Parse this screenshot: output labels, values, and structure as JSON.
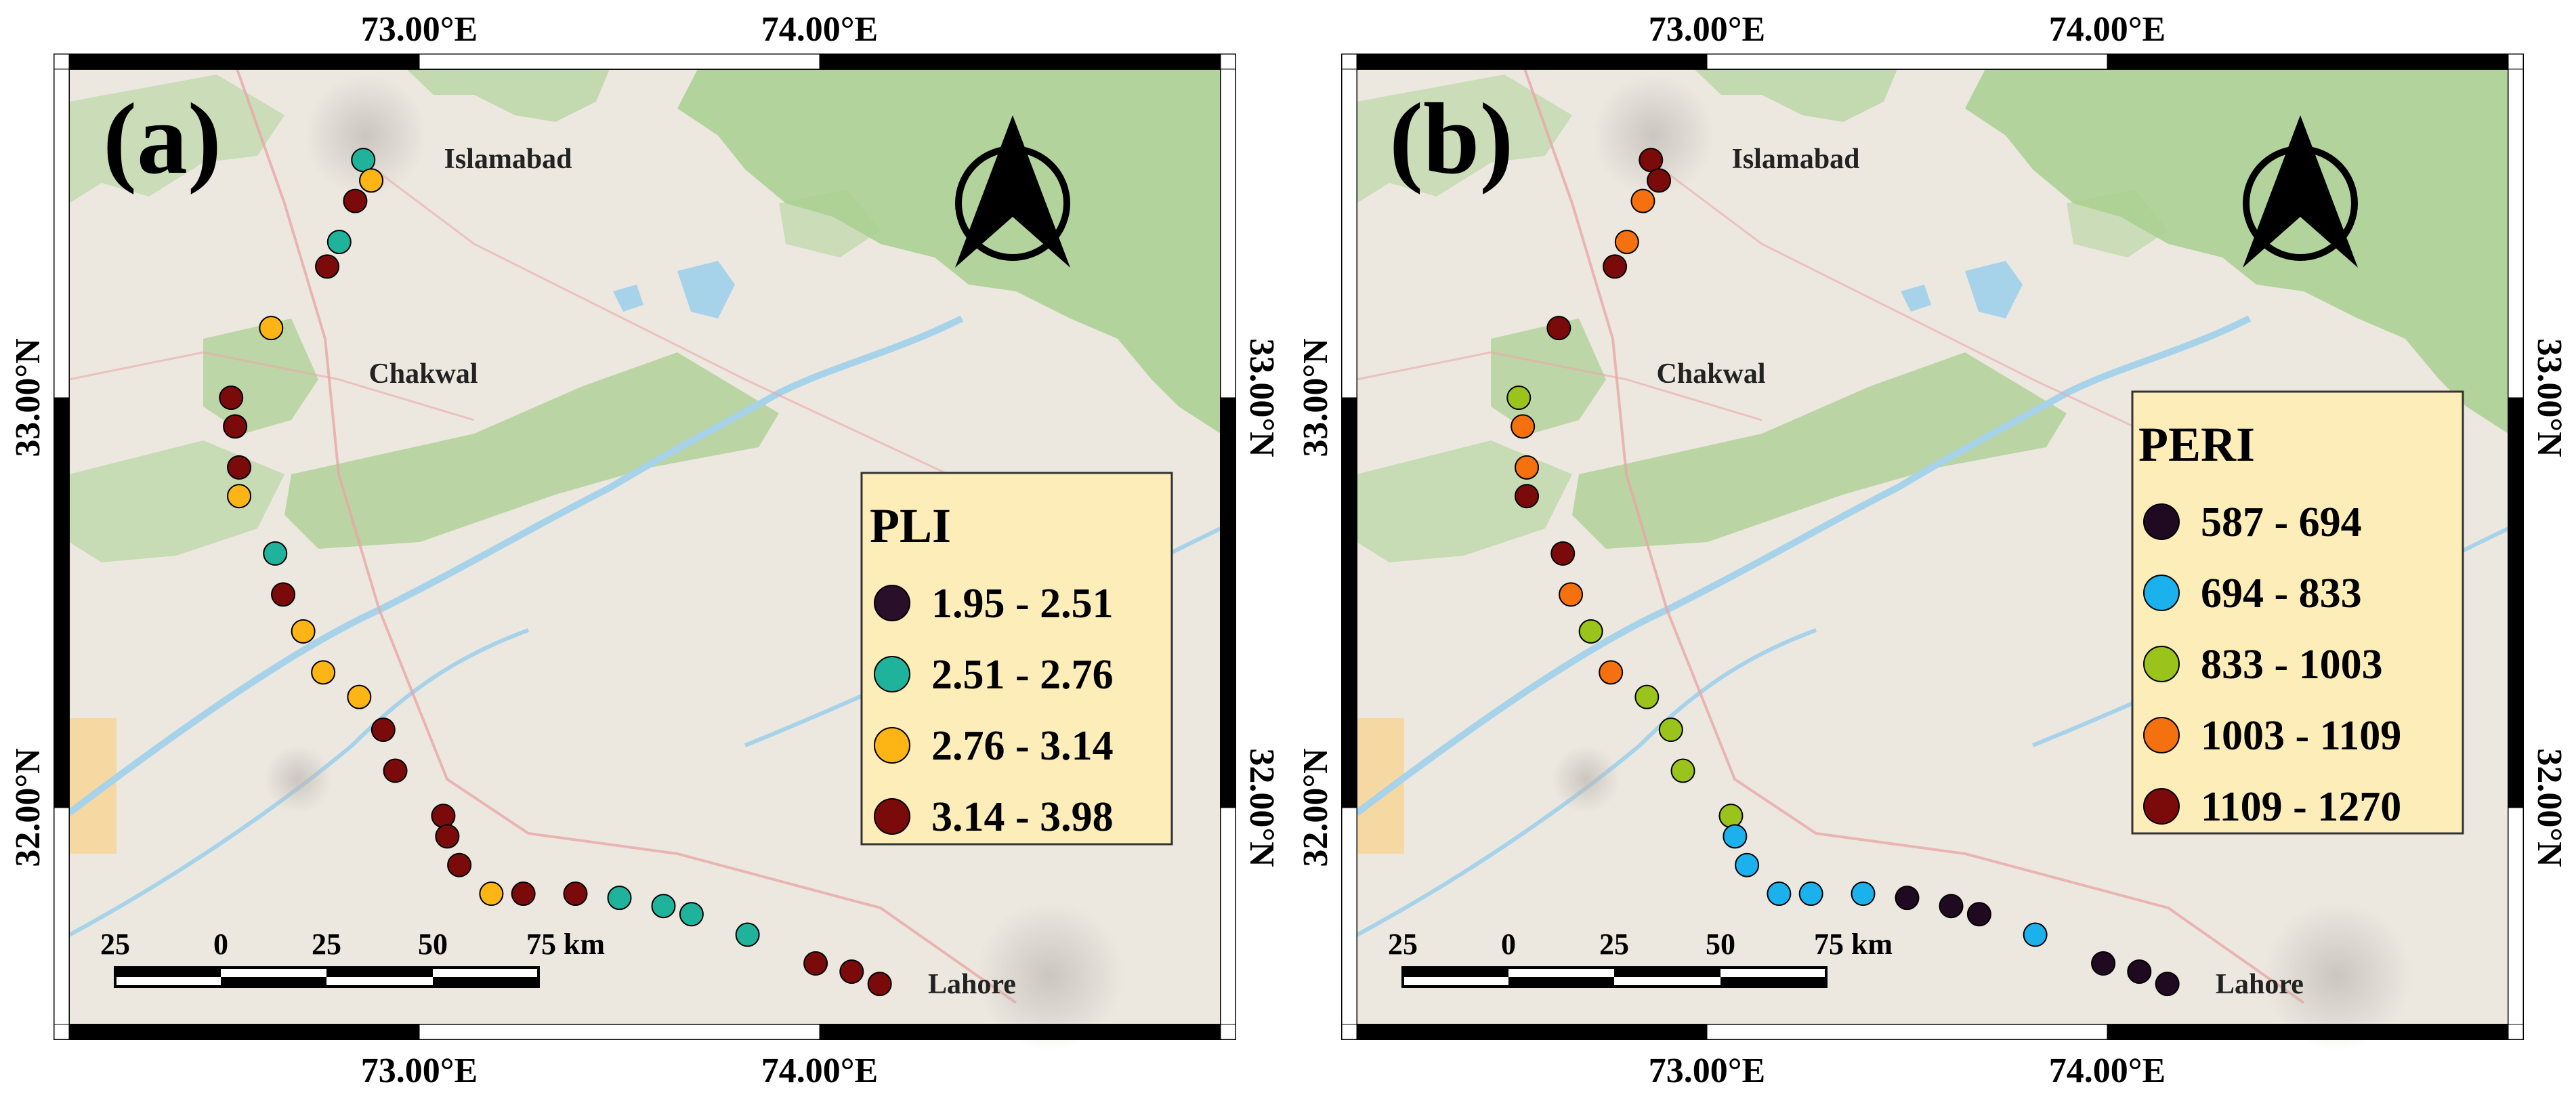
{
  "axes": {
    "top_lon": [
      "73.00°E",
      "74.00°E"
    ],
    "bottom_lon": [
      "73.00°E",
      "74.00°E"
    ],
    "left_lat": [
      "33.00°N",
      "32.00°N"
    ],
    "right_lat": [
      "33.00°N",
      "32.00°N"
    ]
  },
  "places": {
    "islamabad": "Islamabad",
    "chakwal": "Chakwal",
    "lahore": "Lahore"
  },
  "scale_bar": {
    "labels": [
      "25",
      "0",
      "25",
      "50",
      "75 km"
    ]
  },
  "colors": {
    "water": "#a6d2ea",
    "vegetation": "#a9cf8f",
    "land": "#ece8e0",
    "legend_bg": "#fdedb9",
    "frame": "#000000"
  },
  "panels": [
    {
      "id": "a",
      "label": "(a)",
      "legend_title": "PLI",
      "classes": [
        {
          "label": "1.95 - 2.51",
          "color": "#2a0f2a"
        },
        {
          "label": "2.51 - 2.76",
          "color": "#1fb39b"
        },
        {
          "label": "2.76 - 3.14",
          "color": "#fdb515"
        },
        {
          "label": "3.14 - 3.98",
          "color": "#7b0b0b"
        }
      ],
      "sites": [
        {
          "lon": 72.86,
          "lat": 33.58,
          "c": 1
        },
        {
          "lon": 72.88,
          "lat": 33.53,
          "c": 2
        },
        {
          "lon": 72.84,
          "lat": 33.48,
          "c": 3
        },
        {
          "lon": 72.8,
          "lat": 33.38,
          "c": 1
        },
        {
          "lon": 72.77,
          "lat": 33.32,
          "c": 3
        },
        {
          "lon": 72.63,
          "lat": 33.17,
          "c": 2
        },
        {
          "lon": 72.53,
          "lat": 33.0,
          "c": 3
        },
        {
          "lon": 72.54,
          "lat": 32.93,
          "c": 3
        },
        {
          "lon": 72.55,
          "lat": 32.83,
          "c": 3
        },
        {
          "lon": 72.55,
          "lat": 32.76,
          "c": 2
        },
        {
          "lon": 72.64,
          "lat": 32.62,
          "c": 1
        },
        {
          "lon": 72.66,
          "lat": 32.52,
          "c": 3
        },
        {
          "lon": 72.71,
          "lat": 32.43,
          "c": 2
        },
        {
          "lon": 72.76,
          "lat": 32.33,
          "c": 2
        },
        {
          "lon": 72.85,
          "lat": 32.27,
          "c": 2
        },
        {
          "lon": 72.91,
          "lat": 32.19,
          "c": 3
        },
        {
          "lon": 72.94,
          "lat": 32.09,
          "c": 3
        },
        {
          "lon": 73.06,
          "lat": 31.98,
          "c": 3
        },
        {
          "lon": 73.07,
          "lat": 31.93,
          "c": 3
        },
        {
          "lon": 73.1,
          "lat": 31.86,
          "c": 3
        },
        {
          "lon": 73.18,
          "lat": 31.79,
          "c": 2
        },
        {
          "lon": 73.26,
          "lat": 31.79,
          "c": 3
        },
        {
          "lon": 73.39,
          "lat": 31.79,
          "c": 3
        },
        {
          "lon": 73.5,
          "lat": 31.78,
          "c": 1
        },
        {
          "lon": 73.61,
          "lat": 31.76,
          "c": 1
        },
        {
          "lon": 73.68,
          "lat": 31.74,
          "c": 1
        },
        {
          "lon": 73.82,
          "lat": 31.69,
          "c": 1
        },
        {
          "lon": 73.99,
          "lat": 31.62,
          "c": 3
        },
        {
          "lon": 74.08,
          "lat": 31.6,
          "c": 3
        },
        {
          "lon": 74.15,
          "lat": 31.57,
          "c": 3
        }
      ]
    },
    {
      "id": "b",
      "label": "(b)",
      "legend_title": "PERI",
      "classes": [
        {
          "label": "587 - 694",
          "color": "#1f0a22"
        },
        {
          "label": "694 - 833",
          "color": "#1bb1ec"
        },
        {
          "label": "833 - 1003",
          "color": "#9ac31c"
        },
        {
          "label": "1003 - 1109",
          "color": "#f5700f"
        },
        {
          "label": "1109 - 1270",
          "color": "#7b0b0b"
        }
      ],
      "sites": [
        {
          "lon": 72.86,
          "lat": 33.58,
          "c": 4
        },
        {
          "lon": 72.88,
          "lat": 33.53,
          "c": 4
        },
        {
          "lon": 72.84,
          "lat": 33.48,
          "c": 3
        },
        {
          "lon": 72.8,
          "lat": 33.38,
          "c": 3
        },
        {
          "lon": 72.77,
          "lat": 33.32,
          "c": 4
        },
        {
          "lon": 72.63,
          "lat": 33.17,
          "c": 4
        },
        {
          "lon": 72.53,
          "lat": 33.0,
          "c": 2
        },
        {
          "lon": 72.54,
          "lat": 32.93,
          "c": 3
        },
        {
          "lon": 72.55,
          "lat": 32.83,
          "c": 3
        },
        {
          "lon": 72.55,
          "lat": 32.76,
          "c": 4
        },
        {
          "lon": 72.64,
          "lat": 32.62,
          "c": 4
        },
        {
          "lon": 72.66,
          "lat": 32.52,
          "c": 3
        },
        {
          "lon": 72.71,
          "lat": 32.43,
          "c": 2
        },
        {
          "lon": 72.76,
          "lat": 32.33,
          "c": 3
        },
        {
          "lon": 72.85,
          "lat": 32.27,
          "c": 2
        },
        {
          "lon": 72.91,
          "lat": 32.19,
          "c": 2
        },
        {
          "lon": 72.94,
          "lat": 32.09,
          "c": 2
        },
        {
          "lon": 73.06,
          "lat": 31.98,
          "c": 2
        },
        {
          "lon": 73.07,
          "lat": 31.93,
          "c": 1
        },
        {
          "lon": 73.1,
          "lat": 31.86,
          "c": 1
        },
        {
          "lon": 73.18,
          "lat": 31.79,
          "c": 1
        },
        {
          "lon": 73.26,
          "lat": 31.79,
          "c": 1
        },
        {
          "lon": 73.39,
          "lat": 31.79,
          "c": 1
        },
        {
          "lon": 73.5,
          "lat": 31.78,
          "c": 0
        },
        {
          "lon": 73.61,
          "lat": 31.76,
          "c": 0
        },
        {
          "lon": 73.68,
          "lat": 31.74,
          "c": 0
        },
        {
          "lon": 73.82,
          "lat": 31.69,
          "c": 1
        },
        {
          "lon": 73.99,
          "lat": 31.62,
          "c": 0
        },
        {
          "lon": 74.08,
          "lat": 31.6,
          "c": 0
        },
        {
          "lon": 74.15,
          "lat": 31.57,
          "c": 0
        }
      ]
    }
  ]
}
